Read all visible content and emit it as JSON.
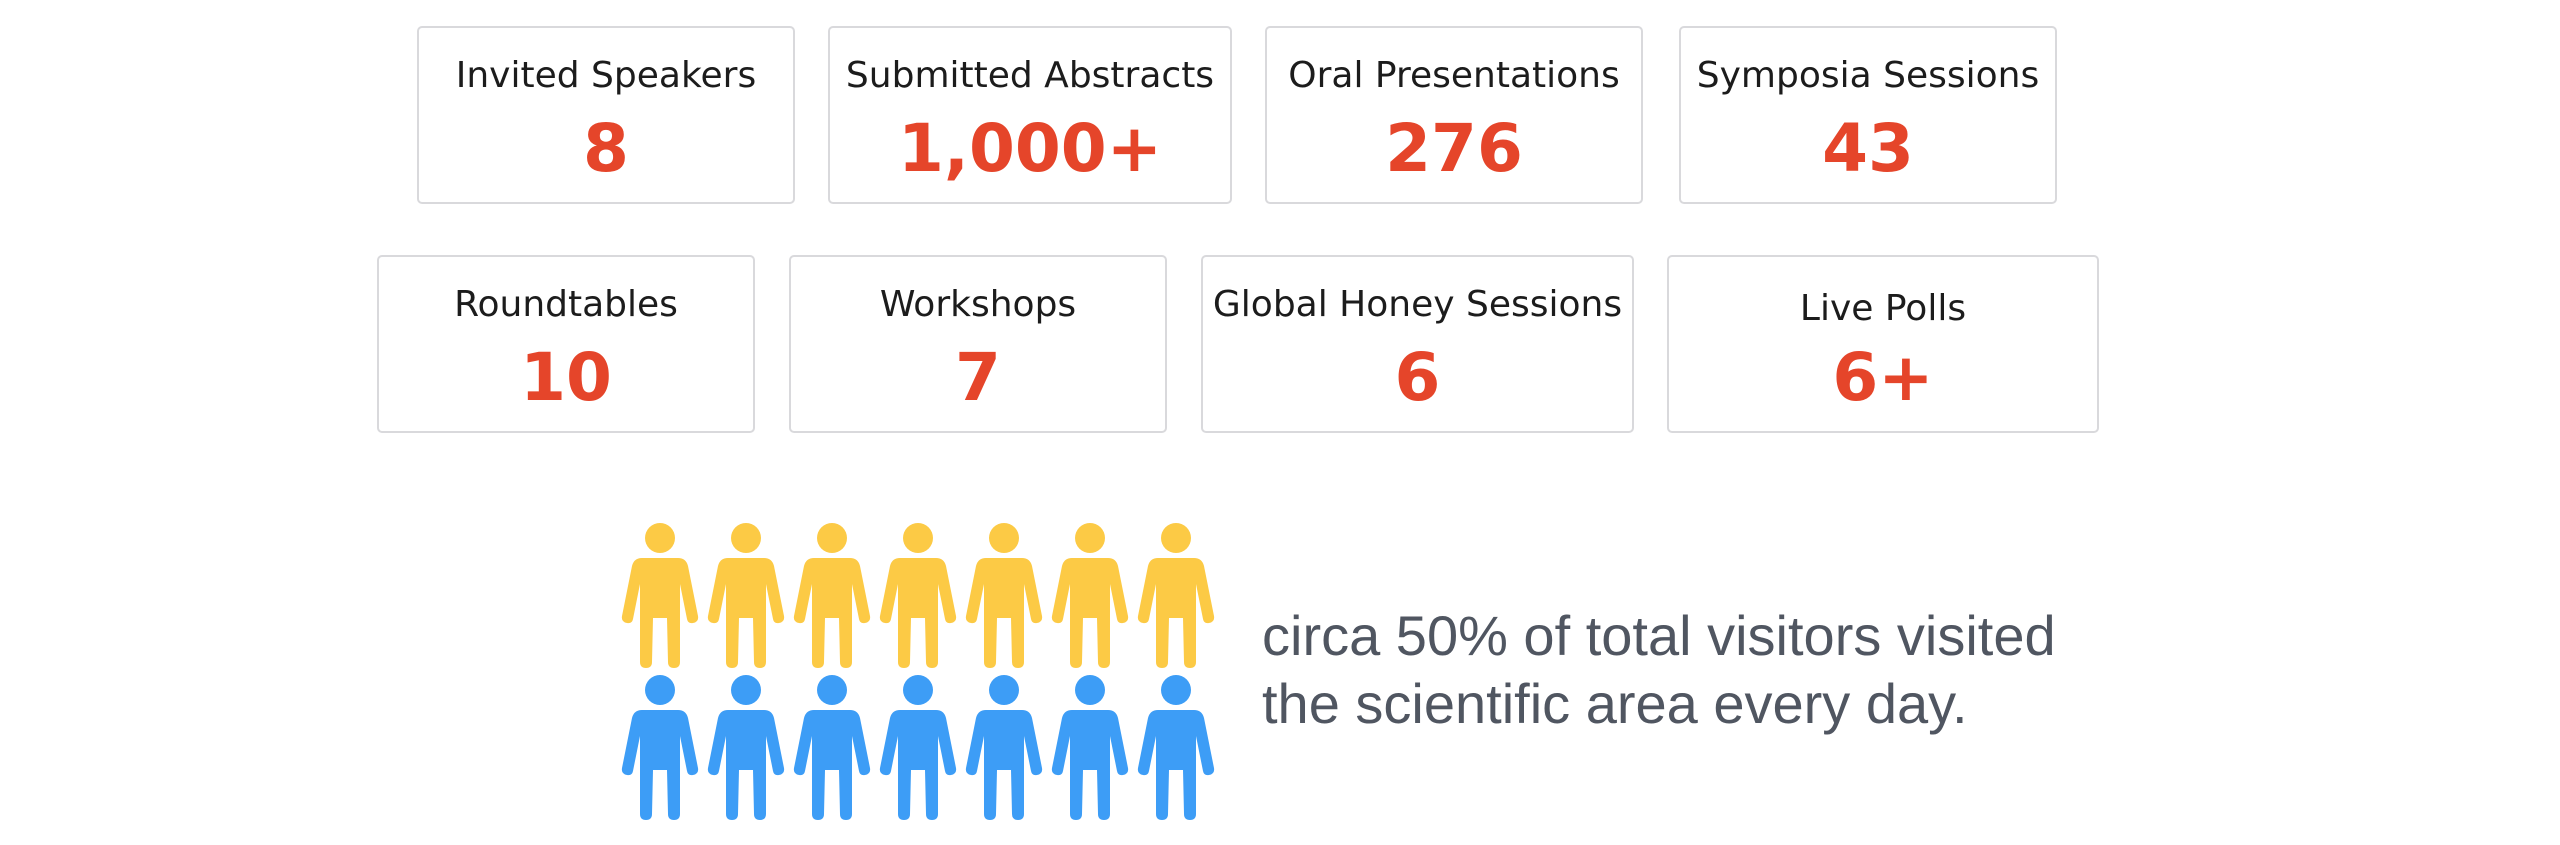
{
  "stats_row1": [
    {
      "label": "Invited Speakers",
      "value": "8"
    },
    {
      "label": "Submitted Abstracts",
      "value": "1,000+"
    },
    {
      "label": "Oral Presentations",
      "value": "276"
    },
    {
      "label": "Symposia Sessions",
      "value": "43"
    }
  ],
  "stats_row2": [
    {
      "label": "Roundtables",
      "value": "10"
    },
    {
      "label": "Workshops",
      "value": "7"
    },
    {
      "label": "Global Honey Sessions",
      "value": "6"
    },
    {
      "label": "Live Polls",
      "value": "6+"
    }
  ],
  "visitors": {
    "top_row": {
      "count": 7,
      "color": "#fcca45"
    },
    "bottom_row": {
      "count": 7,
      "color": "#3d9df6"
    },
    "caption_line1": "circa 50% of total visitors visited",
    "caption_line2": "the scientific area every day."
  },
  "colors": {
    "value_text": "#e5452a",
    "card_border": "#d9d9dc",
    "caption_text": "#505661"
  }
}
